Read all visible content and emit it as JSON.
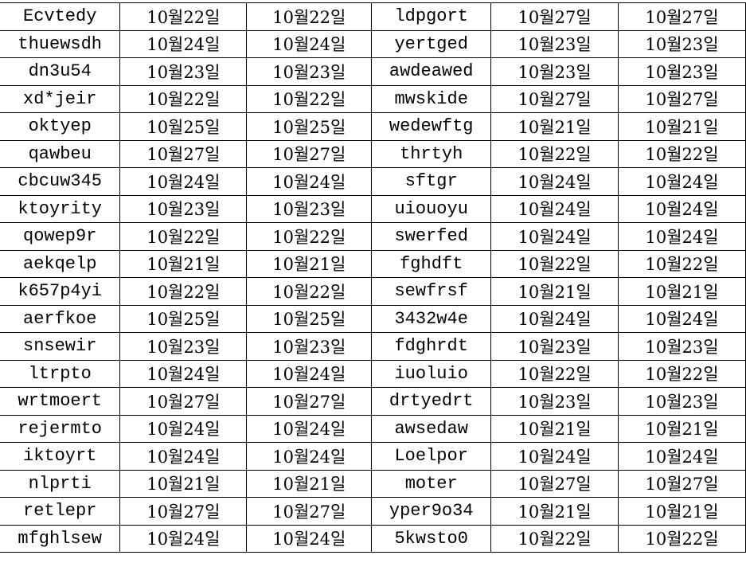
{
  "rows": [
    [
      "Ecvtedy",
      "10월22일",
      "10월22일",
      "ldpgort",
      "10월27일",
      "10월27일"
    ],
    [
      "thuewsdh",
      "10월24일",
      "10월24일",
      "yertged",
      "10월23일",
      "10월23일"
    ],
    [
      "dn3u54",
      "10월23일",
      "10월23일",
      "awdeawed",
      "10월23일",
      "10월23일"
    ],
    [
      "xd*jeir",
      "10월22일",
      "10월22일",
      "mwskide",
      "10월27일",
      "10월27일"
    ],
    [
      "oktyep",
      "10월25일",
      "10월25일",
      "wedewftg",
      "10월21일",
      "10월21일"
    ],
    [
      "qawbeu",
      "10월27일",
      "10월27일",
      "thrtyh",
      "10월22일",
      "10월22일"
    ],
    [
      "cbcuw345",
      "10월24일",
      "10월24일",
      "sftgr",
      "10월24일",
      "10월24일"
    ],
    [
      "ktoyrity",
      "10월23일",
      "10월23일",
      "uiouoyu",
      "10월24일",
      "10월24일"
    ],
    [
      "qowep9r",
      "10월22일",
      "10월22일",
      "swerfed",
      "10월24일",
      "10월24일"
    ],
    [
      "aekqelp",
      "10월21일",
      "10월21일",
      "fghdft",
      "10월22일",
      "10월22일"
    ],
    [
      "k657p4yi",
      "10월22일",
      "10월22일",
      "sewfrsf",
      "10월21일",
      "10월21일"
    ],
    [
      "aerfkoe",
      "10월25일",
      "10월25일",
      "3432w4e",
      "10월24일",
      "10월24일"
    ],
    [
      "snsewir",
      "10월23일",
      "10월23일",
      "fdghrdt",
      "10월23일",
      "10월23일"
    ],
    [
      "ltrpto",
      "10월24일",
      "10월24일",
      "iuoluio",
      "10월22일",
      "10월22일"
    ],
    [
      "wrtmoert",
      "10월27일",
      "10월27일",
      "drtyedrt",
      "10월23일",
      "10월23일"
    ],
    [
      "rejermto",
      "10월24일",
      "10월24일",
      "awsedaw",
      "10월21일",
      "10월21일"
    ],
    [
      "iktoyrt",
      "10월24일",
      "10월24일",
      "Loelpor",
      "10월24일",
      "10월24일"
    ],
    [
      "nlprti",
      "10월21일",
      "10월21일",
      "moter",
      "10월27일",
      "10월27일"
    ],
    [
      "retlepr",
      "10월27일",
      "10월27일",
      "yper9o34",
      "10월21일",
      "10월21일"
    ],
    [
      "mfghlsew",
      "10월24일",
      "10월24일",
      "5kwsto0",
      "10월22일",
      "10월22일"
    ]
  ]
}
